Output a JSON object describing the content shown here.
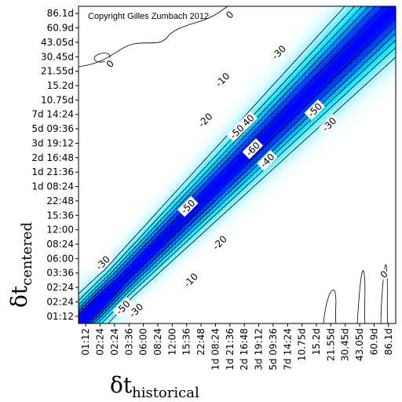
{
  "chart_data": {
    "type": "heatmap",
    "title": "",
    "copyright": "Copyright Gilles Zumbach 2012",
    "xlabel_main": "δt",
    "xlabel_sub": "historical",
    "ylabel_main": "δt",
    "ylabel_sub": "centered",
    "tick_labels": [
      "01:12",
      "02:24",
      "02:24",
      "03:36",
      "06:00",
      "08:24",
      "12:00",
      "15:36",
      "22:48",
      "1d 08:24",
      "1d 21:36",
      "2d 16:48",
      "3d 19:12",
      "5d 09:36",
      "7d 14:24",
      "10.75d",
      "15.2d",
      "21.55d",
      "30.45d",
      "43.05d",
      "60.9d",
      "86.1d"
    ],
    "contour_levels": [
      -10,
      -20,
      -30,
      -40,
      -50,
      -60
    ],
    "contour_labels": [
      {
        "text": "-10",
        "x": 9.5,
        "y": 16.4
      },
      {
        "text": "-20",
        "x": 8.3,
        "y": 13.6
      },
      {
        "text": "-30",
        "x": 13.4,
        "y": 18.3
      },
      {
        "text": "-40",
        "x": 11.2,
        "y": 13.5
      },
      {
        "text": "-50",
        "x": 10.5,
        "y": 12.8
      },
      {
        "text": "-60",
        "x": 11.6,
        "y": 11.6
      },
      {
        "text": "-40",
        "x": 12.6,
        "y": 10.8
      },
      {
        "text": "-50",
        "x": 15.9,
        "y": 14.3
      },
      {
        "text": "-30",
        "x": 16.9,
        "y": 13.3
      },
      {
        "text": "-50",
        "x": 7.1,
        "y": 7.6
      },
      {
        "text": "-20",
        "x": 9.3,
        "y": 5.1
      },
      {
        "text": "-10",
        "x": 7.3,
        "y": 2.5
      },
      {
        "text": "-30",
        "x": 1.2,
        "y": 3.7
      },
      {
        "text": "-50",
        "x": 2.6,
        "y": 0.6
      },
      {
        "text": "-30",
        "x": 3.5,
        "y": 0.4
      },
      {
        "text": "0",
        "x": 10.0,
        "y": 20.9
      },
      {
        "text": "0",
        "x": 1.7,
        "y": 17.5
      },
      {
        "text": "0",
        "x": 20.7,
        "y": 2.9
      }
    ],
    "colorscale": [
      "#ffffff",
      "#00e4ff",
      "#0000ff"
    ],
    "diagonal_min": -65,
    "grid": false,
    "legend": "none"
  }
}
